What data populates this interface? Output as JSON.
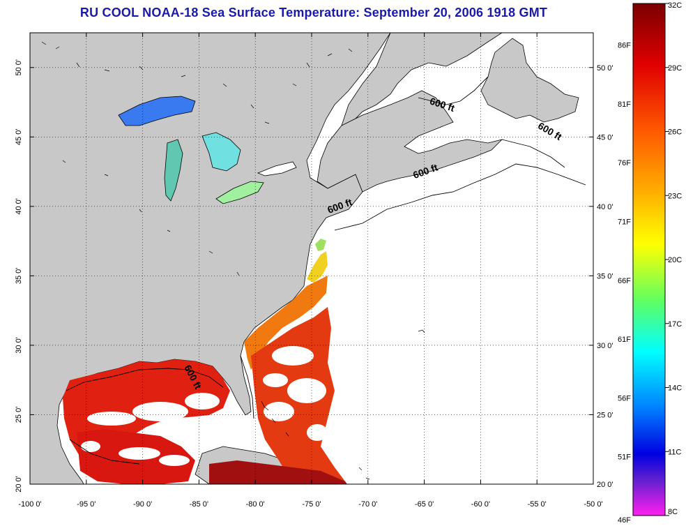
{
  "title": "RU COOL  NOAA-18  Sea Surface Temperature:  September 20, 2006 1918 GMT",
  "map": {
    "lon_range": [
      -100,
      -50
    ],
    "lat_range": [
      20,
      52.5
    ],
    "lon_ticks": [
      "-100 0'",
      "-95 0'",
      "-90 0'",
      "-85 0'",
      "-80 0'",
      "-75 0'",
      "-70 0'",
      "-65 0'",
      "-60 0'",
      "-55 0'",
      "-50 0'"
    ],
    "lat_ticks": [
      "20 0'",
      "25 0'",
      "30 0'",
      "35 0'",
      "40 0'",
      "45 0'",
      "50 0'"
    ],
    "grid": "dotted",
    "isobath_labels": [
      {
        "text": "600 ft",
        "lon": -63.5,
        "lat": 47.1,
        "rotate": 18
      },
      {
        "text": "600 ft",
        "lon": -54.0,
        "lat": 45.2,
        "rotate": 30
      },
      {
        "text": "600 ft",
        "lon": -64.8,
        "lat": 42.3,
        "rotate": -20
      },
      {
        "text": "600 ft",
        "lon": -72.4,
        "lat": 39.8,
        "rotate": -20
      },
      {
        "text": "600 ft",
        "lon": -85.8,
        "lat": 27.6,
        "rotate": 62
      }
    ],
    "colors": {
      "land": "#c8c8c8",
      "no_data": "#ffffff",
      "border": "#000000"
    }
  },
  "colorbar": {
    "celsius_labels": [
      "32C",
      "29C",
      "26C",
      "23C",
      "20C",
      "17C",
      "14C",
      "11C",
      "8C"
    ],
    "fahrenheit_labels": [
      "86F",
      "81F",
      "76F",
      "71F",
      "66F",
      "61F",
      "56F",
      "51F",
      "46F"
    ],
    "range_c": [
      8,
      32
    ],
    "stops": [
      "#8b0000",
      "#ff1a00",
      "#ff8c00",
      "#ffff00",
      "#80ff40",
      "#00ffff",
      "#0080ff",
      "#0000ff",
      "#8030c0",
      "#ff30ff"
    ]
  }
}
